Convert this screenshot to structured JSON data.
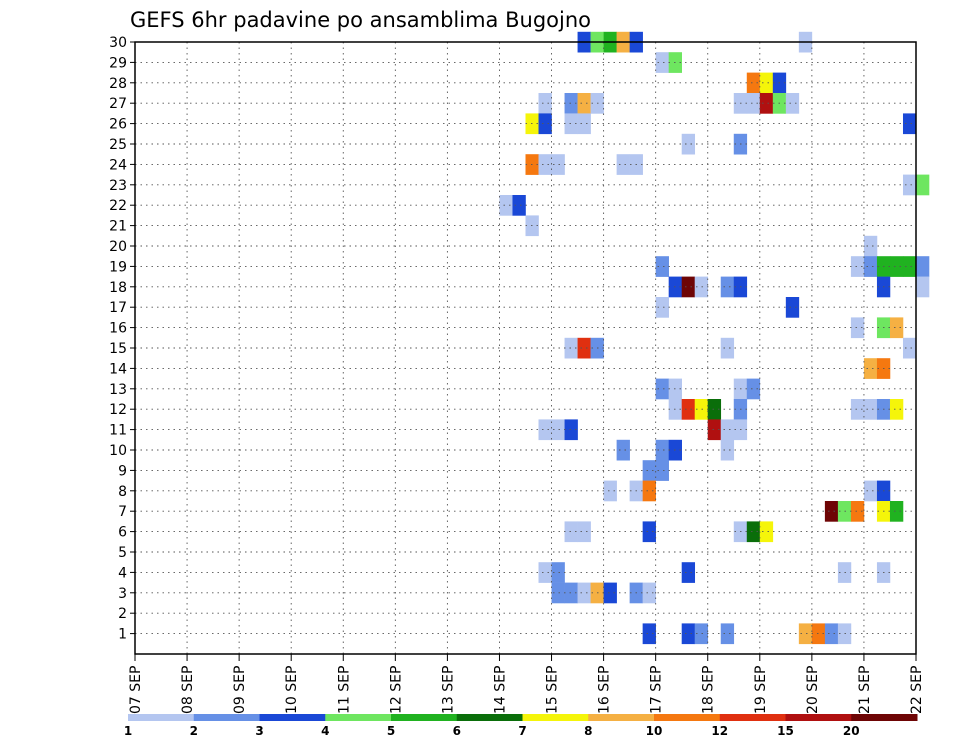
{
  "chart_data": {
    "type": "heatmap",
    "title": "GEFS 6hr padavine po ansamblima Bugojno",
    "xlabel": "",
    "ylabel": "",
    "x_start_day": 7,
    "x_days": [
      "07 SEP",
      "08 SEP",
      "09 SEP",
      "10 SEP",
      "11 SEP",
      "12 SEP",
      "13 SEP",
      "14 SEP",
      "15 SEP",
      "16 SEP",
      "17 SEP",
      "18 SEP",
      "19 SEP",
      "20 SEP",
      "21 SEP",
      "22 SEP"
    ],
    "xlim": [
      7,
      22
    ],
    "ylim": [
      0,
      30
    ],
    "y_ticks": [
      1,
      2,
      3,
      4,
      5,
      6,
      7,
      8,
      9,
      10,
      11,
      12,
      13,
      14,
      15,
      16,
      17,
      18,
      19,
      20,
      21,
      22,
      23,
      24,
      25,
      26,
      27,
      28,
      29,
      30
    ],
    "grid": true,
    "legend_placement": "bottom",
    "colorbar": {
      "colors": [
        "#b4c6f0",
        "#6690e6",
        "#1a48d6",
        "#6ee660",
        "#20b220",
        "#0a6e0a",
        "#f5f50a",
        "#f5b043",
        "#f57810",
        "#e03010",
        "#b01010",
        "#6e0505"
      ],
      "labels": [
        "1",
        "2",
        "3",
        "4",
        "5",
        "6",
        "7",
        "8",
        "10",
        "12",
        "15",
        "20"
      ]
    },
    "cells_note_columns": [
      "member",
      "day",
      "color_index"
    ],
    "cells": [
      [
        30,
        15.5,
        2
      ],
      [
        30,
        15.75,
        3
      ],
      [
        30,
        16.0,
        4
      ],
      [
        30,
        16.25,
        7
      ],
      [
        30,
        16.5,
        2
      ],
      [
        30,
        19.75,
        0
      ],
      [
        29,
        17.0,
        0
      ],
      [
        29,
        17.25,
        3
      ],
      [
        28,
        18.75,
        8
      ],
      [
        28,
        19.0,
        6
      ],
      [
        28,
        19.25,
        2
      ],
      [
        27,
        14.75,
        0
      ],
      [
        27,
        15.25,
        1
      ],
      [
        27,
        15.5,
        7
      ],
      [
        27,
        15.75,
        0
      ],
      [
        27,
        18.5,
        0
      ],
      [
        27,
        18.75,
        0
      ],
      [
        27,
        19.0,
        10
      ],
      [
        27,
        19.25,
        3
      ],
      [
        27,
        19.5,
        0
      ],
      [
        26,
        14.5,
        6
      ],
      [
        26,
        14.75,
        2
      ],
      [
        26,
        15.25,
        0
      ],
      [
        26,
        15.5,
        0
      ],
      [
        26,
        21.75,
        2
      ],
      [
        25,
        17.5,
        0
      ],
      [
        25,
        18.5,
        1
      ],
      [
        24,
        14.5,
        8
      ],
      [
        24,
        14.75,
        0
      ],
      [
        24,
        15.0,
        0
      ],
      [
        24,
        16.25,
        0
      ],
      [
        24,
        16.5,
        0
      ],
      [
        23,
        21.75,
        0
      ],
      [
        23,
        22.0,
        3
      ],
      [
        22,
        14.0,
        0
      ],
      [
        22,
        14.25,
        2
      ],
      [
        21,
        14.5,
        0
      ],
      [
        20,
        21.0,
        0
      ],
      [
        19,
        17.0,
        1
      ],
      [
        19,
        20.75,
        0
      ],
      [
        19,
        21.0,
        1
      ],
      [
        19,
        21.25,
        4
      ],
      [
        19,
        21.5,
        4
      ],
      [
        19,
        21.75,
        4
      ],
      [
        19,
        22.0,
        1
      ],
      [
        18,
        17.25,
        2
      ],
      [
        18,
        17.5,
        11
      ],
      [
        18,
        17.75,
        0
      ],
      [
        18,
        18.25,
        1
      ],
      [
        18,
        18.5,
        2
      ],
      [
        18,
        21.25,
        2
      ],
      [
        18,
        22.0,
        0
      ],
      [
        17,
        17.0,
        0
      ],
      [
        17,
        19.5,
        2
      ],
      [
        16,
        20.75,
        0
      ],
      [
        16,
        21.25,
        3
      ],
      [
        16,
        21.5,
        7
      ],
      [
        15,
        15.25,
        0
      ],
      [
        15,
        15.5,
        9
      ],
      [
        15,
        15.75,
        1
      ],
      [
        15,
        18.25,
        0
      ],
      [
        15,
        21.75,
        0
      ],
      [
        14,
        21.0,
        7
      ],
      [
        14,
        21.25,
        8
      ],
      [
        13,
        17.0,
        1
      ],
      [
        13,
        17.25,
        0
      ],
      [
        13,
        18.5,
        0
      ],
      [
        13,
        18.75,
        1
      ],
      [
        12,
        17.25,
        0
      ],
      [
        12,
        17.5,
        9
      ],
      [
        12,
        17.75,
        6
      ],
      [
        12,
        18.0,
        5
      ],
      [
        12,
        18.5,
        1
      ],
      [
        12,
        20.75,
        0
      ],
      [
        12,
        21.0,
        0
      ],
      [
        12,
        21.25,
        1
      ],
      [
        12,
        21.5,
        6
      ],
      [
        11,
        14.75,
        0
      ],
      [
        11,
        15.0,
        0
      ],
      [
        11,
        15.25,
        2
      ],
      [
        11,
        18.0,
        10
      ],
      [
        11,
        18.25,
        0
      ],
      [
        11,
        18.5,
        0
      ],
      [
        10,
        16.25,
        1
      ],
      [
        10,
        17.0,
        1
      ],
      [
        10,
        17.25,
        2
      ],
      [
        10,
        18.25,
        0
      ],
      [
        9,
        16.75,
        1
      ],
      [
        9,
        17.0,
        1
      ],
      [
        8,
        16.0,
        0
      ],
      [
        8,
        16.5,
        0
      ],
      [
        8,
        16.75,
        8
      ],
      [
        8,
        21.0,
        0
      ],
      [
        8,
        21.25,
        2
      ],
      [
        7,
        20.25,
        11
      ],
      [
        7,
        20.5,
        3
      ],
      [
        7,
        20.75,
        8
      ],
      [
        7,
        21.25,
        6
      ],
      [
        7,
        21.5,
        4
      ],
      [
        6,
        15.25,
        0
      ],
      [
        6,
        15.5,
        0
      ],
      [
        6,
        16.75,
        2
      ],
      [
        6,
        18.5,
        0
      ],
      [
        6,
        18.75,
        5
      ],
      [
        6,
        19.0,
        6
      ],
      [
        4,
        14.75,
        0
      ],
      [
        4,
        15.0,
        1
      ],
      [
        4,
        17.5,
        2
      ],
      [
        4,
        20.5,
        0
      ],
      [
        4,
        21.25,
        0
      ],
      [
        3,
        15.0,
        1
      ],
      [
        3,
        15.25,
        1
      ],
      [
        3,
        15.5,
        0
      ],
      [
        3,
        15.75,
        7
      ],
      [
        3,
        16.0,
        2
      ],
      [
        3,
        16.5,
        1
      ],
      [
        3,
        16.75,
        0
      ],
      [
        1,
        16.75,
        2
      ],
      [
        1,
        17.5,
        2
      ],
      [
        1,
        17.75,
        1
      ],
      [
        1,
        18.25,
        1
      ],
      [
        1,
        19.75,
        7
      ],
      [
        1,
        20.0,
        8
      ],
      [
        1,
        20.25,
        1
      ],
      [
        1,
        20.5,
        0
      ]
    ]
  }
}
